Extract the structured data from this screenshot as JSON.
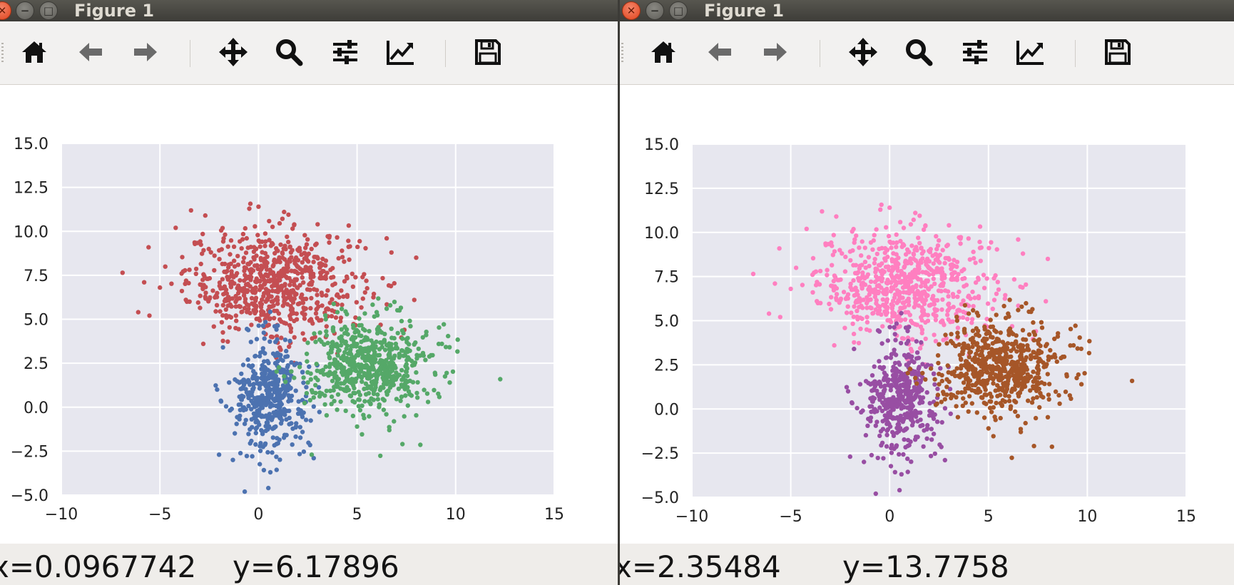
{
  "windows": [
    {
      "title": "Figure 1",
      "status": {
        "x_text": "x=0.0967742",
        "y_text": "y=6.17896"
      }
    },
    {
      "title": "Figure 1",
      "status": {
        "x_text": "x=2.35484",
        "y_text": "y=13.7758"
      }
    }
  ],
  "toolbar": {
    "buttons": [
      {
        "name": "home",
        "icon": "home-icon"
      },
      {
        "name": "back",
        "icon": "arrow-left-icon"
      },
      {
        "name": "forward",
        "icon": "arrow-right-icon"
      },
      {
        "name": "pan",
        "icon": "move-icon"
      },
      {
        "name": "zoom",
        "icon": "magnifier-icon"
      },
      {
        "name": "subplots",
        "icon": "sliders-icon"
      },
      {
        "name": "edit-curve",
        "icon": "line-chart-icon"
      },
      {
        "name": "save",
        "icon": "floppy-icon"
      }
    ]
  },
  "chart_data": [
    {
      "type": "scatter",
      "title": "",
      "xlabel": "",
      "ylabel": "",
      "xlim": [
        -10,
        15
      ],
      "ylim": [
        -5,
        15
      ],
      "xticks": [
        -10,
        -5,
        0,
        5,
        10,
        15
      ],
      "yticks": [
        -5.0,
        -2.5,
        0.0,
        2.5,
        5.0,
        7.5,
        10.0,
        12.5,
        15.0
      ],
      "xtick_labels": [
        "−10",
        "−5",
        "0",
        "5",
        "10",
        "15"
      ],
      "ytick_labels": [
        "−5.0",
        "−2.5",
        "0.0",
        "2.5",
        "5.0",
        "7.5",
        "10.0",
        "12.5",
        "15.0"
      ],
      "grid": true,
      "background": "#e7e7ef",
      "series": [
        {
          "color": "#c44e52",
          "center": [
            0.8,
            7.1
          ],
          "spread": [
            2.2,
            1.5
          ],
          "count": 700,
          "points": [
            [
              -6.1,
              5.4
            ],
            [
              -5.8,
              7.1
            ],
            [
              -5.0,
              6.8
            ],
            [
              -4.2,
              10.2
            ],
            [
              -2.7,
              10.9
            ],
            [
              0.0,
              11.4
            ],
            [
              1.3,
              11.1
            ],
            [
              3.0,
              10.4
            ],
            [
              6.5,
              9.6
            ],
            [
              8.0,
              8.5
            ],
            [
              7.9,
              6.1
            ],
            [
              -0.6,
              9.6
            ],
            [
              2.1,
              8.9
            ],
            [
              -3.5,
              6.0
            ],
            [
              -2.8,
              3.6
            ]
          ]
        },
        {
          "color": "#4c72b0",
          "center": [
            0.6,
            0.7
          ],
          "spread": [
            0.9,
            1.6
          ],
          "count": 420,
          "points": [
            [
              -2.0,
              -2.7
            ],
            [
              -1.3,
              -3.0
            ],
            [
              -0.7,
              -4.8
            ],
            [
              0.6,
              -3.7
            ],
            [
              0.5,
              -4.6
            ],
            [
              2.8,
              -2.9
            ],
            [
              -2.1,
              1.0
            ],
            [
              2.4,
              0.3
            ],
            [
              -1.8,
              3.4
            ],
            [
              0.3,
              3.9
            ]
          ]
        },
        {
          "color": "#55a868",
          "center": [
            5.6,
            2.4
          ],
          "spread": [
            1.5,
            1.3
          ],
          "count": 620,
          "points": [
            [
              9.7,
              1.4
            ],
            [
              9.3,
              3.6
            ],
            [
              7.3,
              -2.1
            ],
            [
              2.7,
              -2.7
            ],
            [
              2.5,
              1.4
            ],
            [
              8.6,
              0.3
            ],
            [
              6.5,
              5.6
            ],
            [
              4.0,
              5.4
            ],
            [
              5.0,
              -1.1
            ]
          ]
        }
      ]
    },
    {
      "type": "scatter",
      "title": "",
      "xlabel": "",
      "ylabel": "",
      "xlim": [
        -10,
        15
      ],
      "ylim": [
        -5,
        15
      ],
      "xticks": [
        -10,
        -5,
        0,
        5,
        10,
        15
      ],
      "yticks": [
        -5.0,
        -2.5,
        0.0,
        2.5,
        5.0,
        7.5,
        10.0,
        12.5,
        15.0
      ],
      "xtick_labels": [
        "−10",
        "−5",
        "0",
        "5",
        "10",
        "15"
      ],
      "ytick_labels": [
        "−5.0",
        "−2.5",
        "0.0",
        "2.5",
        "5.0",
        "7.5",
        "10.0",
        "12.5",
        "15.0"
      ],
      "grid": true,
      "background": "#e7e7ef",
      "series": [
        {
          "color": "#ff7fc0",
          "center": [
            0.8,
            7.1
          ],
          "spread": [
            2.2,
            1.5
          ],
          "count": 700,
          "points": [
            [
              -6.1,
              5.4
            ],
            [
              -5.8,
              7.1
            ],
            [
              -5.0,
              6.8
            ],
            [
              -4.2,
              10.2
            ],
            [
              -2.7,
              10.9
            ],
            [
              0.0,
              11.4
            ],
            [
              1.3,
              11.1
            ],
            [
              3.0,
              10.4
            ],
            [
              6.5,
              9.6
            ],
            [
              8.0,
              8.5
            ],
            [
              7.9,
              6.1
            ],
            [
              -3.5,
              6.0
            ],
            [
              -2.8,
              3.6
            ]
          ]
        },
        {
          "color": "#984ea3",
          "center": [
            0.6,
            0.7
          ],
          "spread": [
            0.9,
            1.6
          ],
          "count": 420,
          "points": [
            [
              -2.0,
              -2.7
            ],
            [
              -1.3,
              -3.0
            ],
            [
              -0.7,
              -4.8
            ],
            [
              0.6,
              -3.7
            ],
            [
              0.5,
              -4.6
            ],
            [
              2.8,
              -2.9
            ],
            [
              -2.1,
              1.0
            ],
            [
              -1.8,
              3.4
            ],
            [
              0.3,
              3.9
            ]
          ]
        },
        {
          "color": "#a65628",
          "center": [
            5.6,
            2.4
          ],
          "spread": [
            1.5,
            1.3
          ],
          "count": 620,
          "points": [
            [
              9.7,
              1.4
            ],
            [
              9.3,
              3.6
            ],
            [
              7.3,
              -2.1
            ],
            [
              2.5,
              1.4
            ],
            [
              8.6,
              0.3
            ],
            [
              6.5,
              5.6
            ],
            [
              4.0,
              5.4
            ],
            [
              5.0,
              -1.1
            ],
            [
              2.4,
              0.3
            ]
          ]
        }
      ]
    }
  ]
}
